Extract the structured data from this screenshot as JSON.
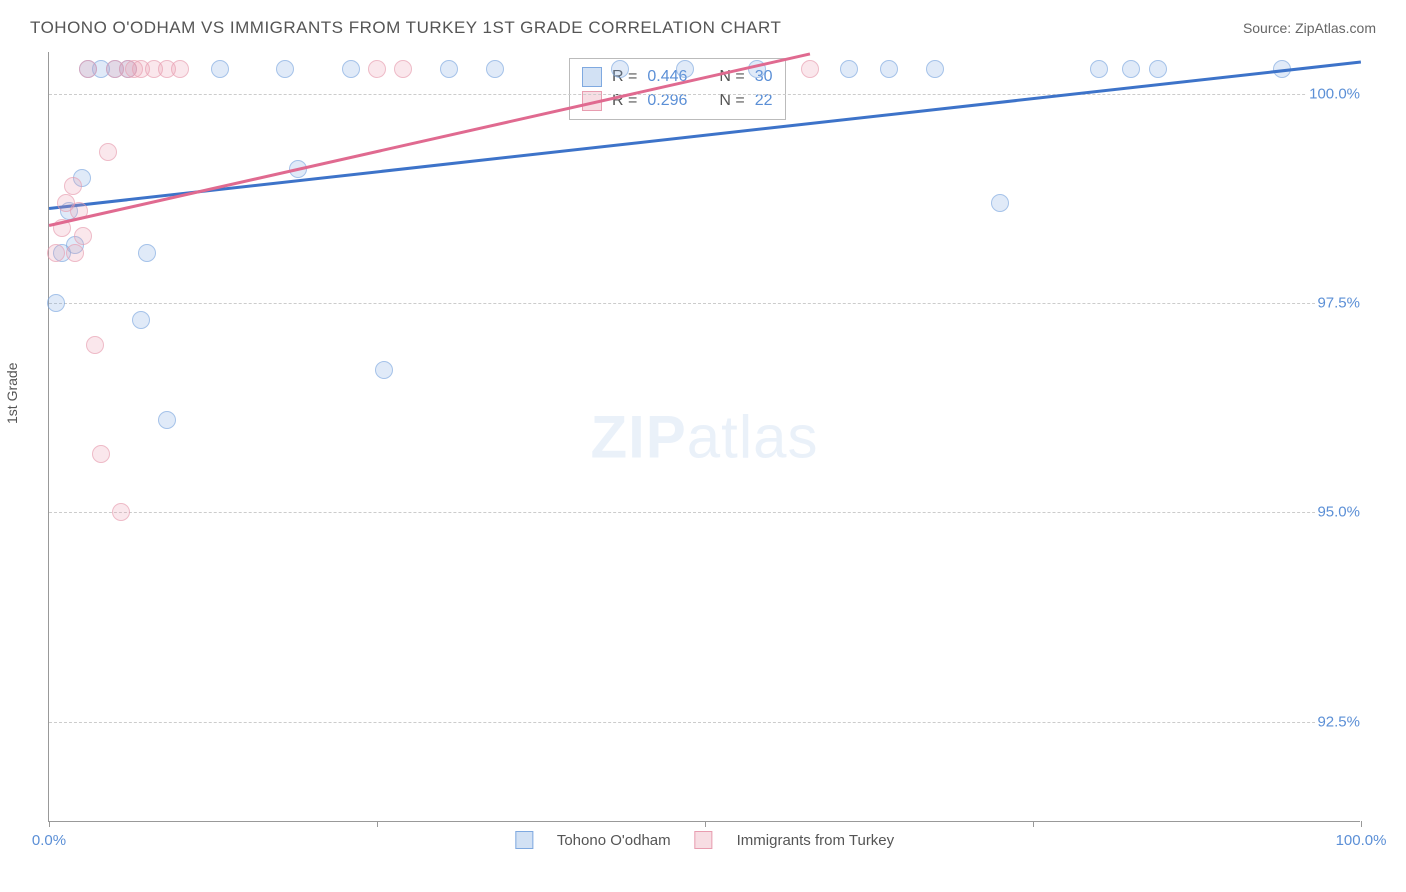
{
  "header": {
    "title": "TOHONO O'ODHAM VS IMMIGRANTS FROM TURKEY 1ST GRADE CORRELATION CHART",
    "source": "Source: ZipAtlas.com"
  },
  "ylabel": "1st Grade",
  "watermark_bold": "ZIP",
  "watermark_rest": "atlas",
  "series": [
    {
      "name": "Tohono O'odham",
      "color": "#7fa9e0",
      "fill": "rgba(127,169,224,0.35)",
      "R": "0.446",
      "N": "30",
      "trend": {
        "x1": 0.0,
        "y1": 98.65,
        "x2": 100.0,
        "y2": 100.4
      },
      "points": [
        {
          "x": 0.5,
          "y": 97.5
        },
        {
          "x": 1.0,
          "y": 98.1
        },
        {
          "x": 1.5,
          "y": 98.6
        },
        {
          "x": 2.0,
          "y": 98.2
        },
        {
          "x": 2.5,
          "y": 99.0
        },
        {
          "x": 3.0,
          "y": 100.3
        },
        {
          "x": 4.0,
          "y": 100.3
        },
        {
          "x": 5.0,
          "y": 100.3
        },
        {
          "x": 6.0,
          "y": 100.3
        },
        {
          "x": 7.0,
          "y": 97.3
        },
        {
          "x": 7.5,
          "y": 98.1
        },
        {
          "x": 9.0,
          "y": 96.1
        },
        {
          "x": 13.0,
          "y": 100.3
        },
        {
          "x": 18.0,
          "y": 100.3
        },
        {
          "x": 19.0,
          "y": 99.1
        },
        {
          "x": 23.0,
          "y": 100.3
        },
        {
          "x": 25.5,
          "y": 96.7
        },
        {
          "x": 30.5,
          "y": 100.3
        },
        {
          "x": 34.0,
          "y": 100.3
        },
        {
          "x": 43.5,
          "y": 100.3
        },
        {
          "x": 48.5,
          "y": 100.3
        },
        {
          "x": 54.0,
          "y": 100.3
        },
        {
          "x": 61.0,
          "y": 100.3
        },
        {
          "x": 64.0,
          "y": 100.3
        },
        {
          "x": 67.5,
          "y": 100.3
        },
        {
          "x": 72.5,
          "y": 98.7
        },
        {
          "x": 80.0,
          "y": 100.3
        },
        {
          "x": 82.5,
          "y": 100.3
        },
        {
          "x": 84.5,
          "y": 100.3
        },
        {
          "x": 94.0,
          "y": 100.3
        }
      ]
    },
    {
      "name": "Immigrants from Turkey",
      "color": "#e89db0",
      "fill": "rgba(232,157,176,0.35)",
      "R": "0.296",
      "N": "22",
      "trend": {
        "x1": 0.0,
        "y1": 98.45,
        "x2": 58.0,
        "y2": 100.5
      },
      "points": [
        {
          "x": 0.5,
          "y": 98.1
        },
        {
          "x": 1.0,
          "y": 98.4
        },
        {
          "x": 1.3,
          "y": 98.7
        },
        {
          "x": 1.8,
          "y": 98.9
        },
        {
          "x": 2.0,
          "y": 98.1
        },
        {
          "x": 2.3,
          "y": 98.6
        },
        {
          "x": 2.6,
          "y": 98.3
        },
        {
          "x": 3.0,
          "y": 100.3
        },
        {
          "x": 3.5,
          "y": 97.0
        },
        {
          "x": 4.0,
          "y": 95.7
        },
        {
          "x": 4.5,
          "y": 99.3
        },
        {
          "x": 5.0,
          "y": 100.3
        },
        {
          "x": 5.5,
          "y": 95.0
        },
        {
          "x": 6.0,
          "y": 100.3
        },
        {
          "x": 6.5,
          "y": 100.3
        },
        {
          "x": 7.0,
          "y": 100.3
        },
        {
          "x": 8.0,
          "y": 100.3
        },
        {
          "x": 9.0,
          "y": 100.3
        },
        {
          "x": 10.0,
          "y": 100.3
        },
        {
          "x": 25.0,
          "y": 100.3
        },
        {
          "x": 27.0,
          "y": 100.3
        },
        {
          "x": 58.0,
          "y": 100.3
        }
      ]
    }
  ],
  "axes": {
    "xlim": [
      0,
      100
    ],
    "ylim": [
      91.3,
      100.5
    ],
    "xticks": [
      0,
      25,
      50,
      75,
      100
    ],
    "xtick_labels": [
      "0.0%",
      "",
      "",
      "",
      "100.0%"
    ],
    "yticks": [
      92.5,
      95.0,
      97.5,
      100.0
    ],
    "ytick_labels": [
      "92.5%",
      "95.0%",
      "97.5%",
      "100.0%"
    ]
  },
  "style": {
    "marker_radius": 9,
    "title_color": "#555555",
    "tick_color": "#5b8fd6",
    "grid_color": "#cccccc"
  },
  "legend_labels": {
    "R": "R =",
    "N": "N ="
  }
}
